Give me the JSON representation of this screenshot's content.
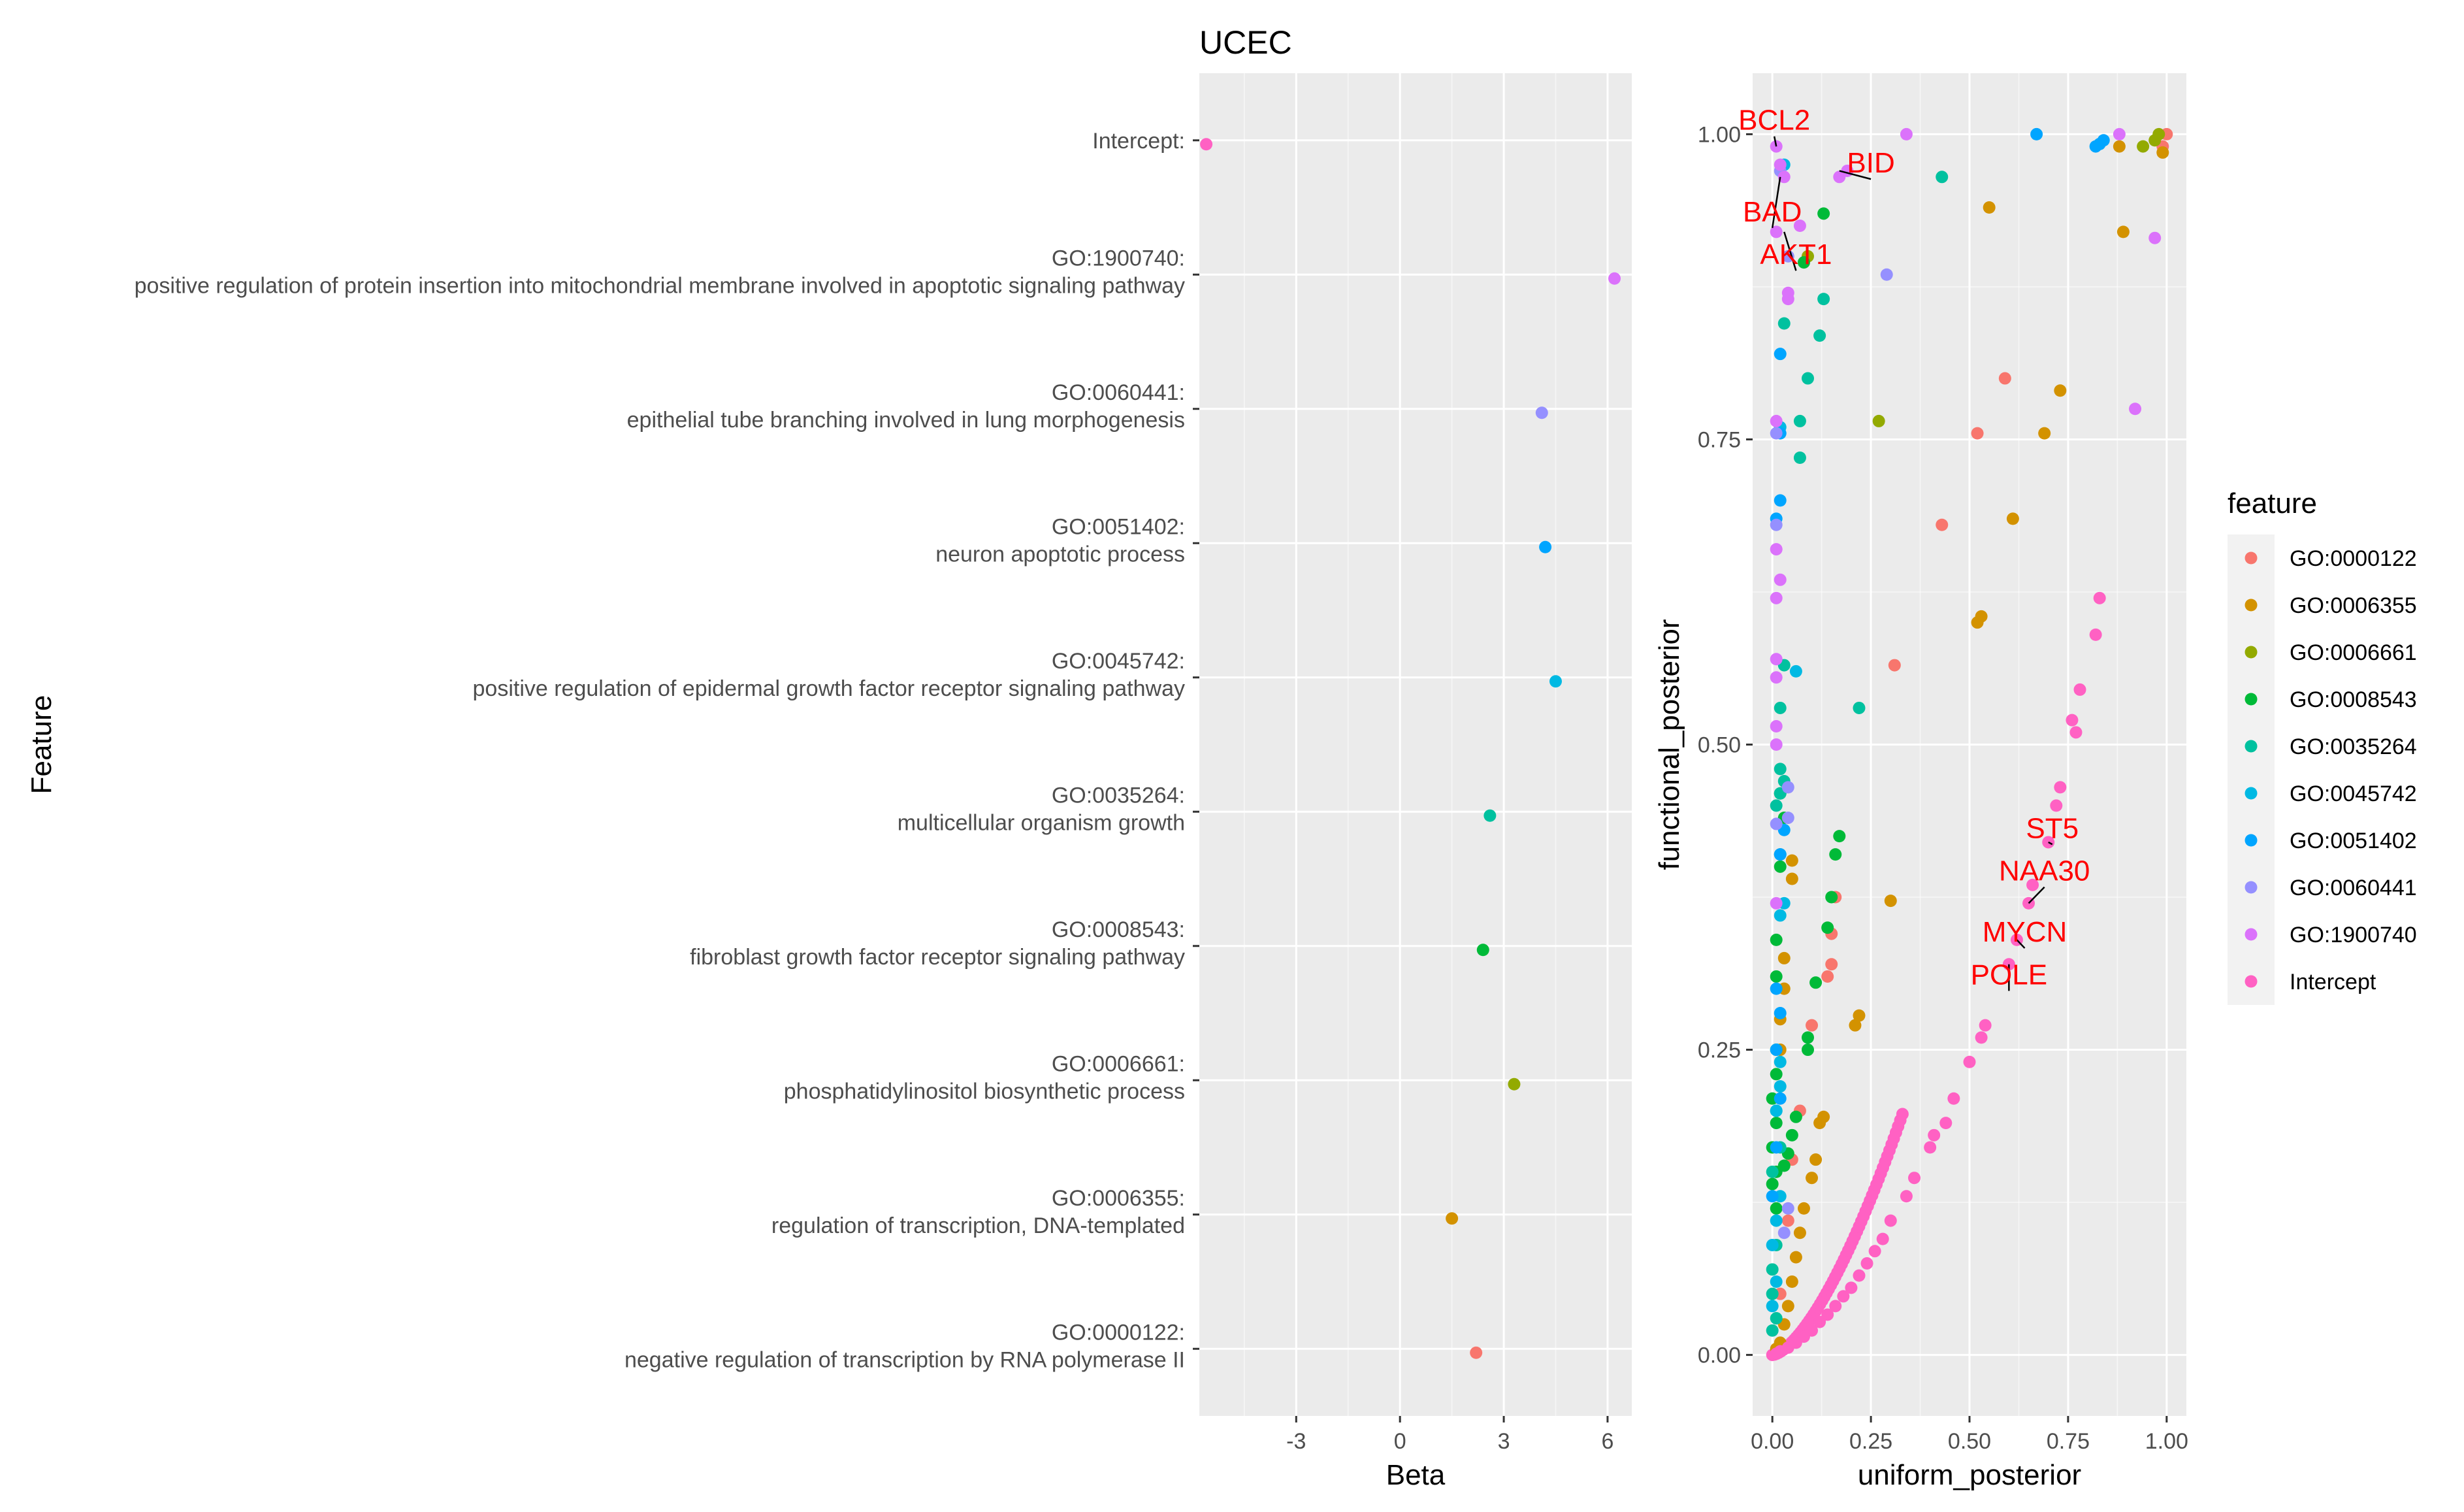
{
  "chart_data": [
    {
      "type": "scatter",
      "title": "UCEC",
      "xlabel": "Beta",
      "ylabel": "Feature",
      "xlim": [
        -5.8,
        6.7
      ],
      "xticks": [
        -3,
        0,
        3,
        6
      ],
      "xtick_labels": [
        "-3",
        "0",
        "3",
        "6"
      ],
      "grid": true,
      "categories": [
        {
          "id": "GO:0000122:",
          "desc": "negative regulation of transcription by RNA polymerase II",
          "beta": 2.2,
          "color": "#F8766D"
        },
        {
          "id": "GO:0006355:",
          "desc": "regulation of transcription, DNA-templated",
          "beta": 1.5,
          "color": "#D39200"
        },
        {
          "id": "GO:0006661:",
          "desc": "phosphatidylinositol biosynthetic process",
          "beta": 3.3,
          "color": "#93AA00"
        },
        {
          "id": "GO:0008543:",
          "desc": "fibroblast growth factor receptor signaling pathway",
          "beta": 2.4,
          "color": "#00BA38"
        },
        {
          "id": "GO:0035264:",
          "desc": "multicellular organism growth",
          "beta": 2.6,
          "color": "#00C19F"
        },
        {
          "id": "GO:0045742:",
          "desc": "positive regulation of epidermal growth factor receptor signaling pathway",
          "beta": 4.5,
          "color": "#00B9E3"
        },
        {
          "id": "GO:0051402:",
          "desc": "neuron apoptotic process",
          "beta": 4.2,
          "color": "#00A5FF"
        },
        {
          "id": "GO:0060441:",
          "desc": "epithelial tube branching involved in lung morphogenesis",
          "beta": 4.1,
          "color": "#9590FF"
        },
        {
          "id": "GO:1900740:",
          "desc": "positive regulation of protein insertion into mitochondrial membrane involved in apoptotic signaling pathway",
          "beta": 6.2,
          "color": "#DB72FB"
        },
        {
          "id": "Intercept:",
          "desc": "",
          "beta": -5.6,
          "color": "#FF61C3"
        }
      ]
    },
    {
      "type": "scatter",
      "title": "",
      "xlabel": "uniform_posterior",
      "ylabel": "functional_posterior",
      "xlim": [
        -0.05,
        1.05
      ],
      "ylim": [
        -0.05,
        1.05
      ],
      "xticks": [
        0,
        0.25,
        0.5,
        0.75,
        1
      ],
      "xtick_labels": [
        "0.00",
        "0.25",
        "0.50",
        "0.75",
        "1.00"
      ],
      "yticks": [
        0,
        0.25,
        0.5,
        0.75,
        1
      ],
      "ytick_labels": [
        "0.00",
        "0.25",
        "0.50",
        "0.75",
        "1.00"
      ],
      "grid": true,
      "legend": {
        "title": "feature",
        "position": "right",
        "items": [
          {
            "label": "GO:0000122",
            "color": "#F8766D"
          },
          {
            "label": "GO:0006355",
            "color": "#D39200"
          },
          {
            "label": "GO:0006661",
            "color": "#93AA00"
          },
          {
            "label": "GO:0008543",
            "color": "#00BA38"
          },
          {
            "label": "GO:0035264",
            "color": "#00C19F"
          },
          {
            "label": "GO:0045742",
            "color": "#00B9E3"
          },
          {
            "label": "GO:0051402",
            "color": "#00A5FF"
          },
          {
            "label": "GO:0060441",
            "color": "#9590FF"
          },
          {
            "label": "GO:1900740",
            "color": "#DB72FB"
          },
          {
            "label": "Intercept",
            "color": "#FF61C3"
          }
        ]
      },
      "series": [
        {
          "name": "GO:0000122",
          "points": [
            [
              0.16,
              0.375
            ],
            [
              0.15,
              0.345
            ],
            [
              0.14,
              0.31
            ],
            [
              0.15,
              0.32
            ],
            [
              0.31,
              0.565
            ],
            [
              0.43,
              0.68
            ],
            [
              0.52,
              0.755
            ],
            [
              0.59,
              0.8
            ],
            [
              0.99,
              0.99
            ],
            [
              1.0,
              1.0
            ],
            [
              0.1,
              0.27
            ],
            [
              0.07,
              0.2
            ],
            [
              0.05,
              0.16
            ],
            [
              0.04,
              0.11
            ],
            [
              0.02,
              0.05
            ]
          ]
        },
        {
          "name": "GO:0006355",
          "points": [
            [
              0.3,
              0.372
            ],
            [
              0.22,
              0.278
            ],
            [
              0.21,
              0.27
            ],
            [
              0.05,
              0.405
            ],
            [
              0.05,
              0.39
            ],
            [
              0.03,
              0.325
            ],
            [
              0.03,
              0.3
            ],
            [
              0.02,
              0.275
            ],
            [
              0.02,
              0.25
            ],
            [
              0.53,
              0.605
            ],
            [
              0.52,
              0.6
            ],
            [
              0.55,
              0.94
            ],
            [
              0.61,
              0.685
            ],
            [
              0.69,
              0.755
            ],
            [
              0.73,
              0.79
            ],
            [
              0.89,
              0.92
            ],
            [
              0.88,
              0.99
            ],
            [
              0.99,
              0.985
            ],
            [
              0.13,
              0.195
            ],
            [
              0.12,
              0.19
            ],
            [
              0.11,
              0.16
            ],
            [
              0.1,
              0.145
            ],
            [
              0.08,
              0.12
            ],
            [
              0.07,
              0.1
            ],
            [
              0.06,
              0.08
            ],
            [
              0.05,
              0.06
            ],
            [
              0.04,
              0.04
            ],
            [
              0.03,
              0.025
            ],
            [
              0.02,
              0.01
            ],
            [
              0.01,
              0.005
            ]
          ]
        },
        {
          "name": "GO:0006661",
          "points": [
            [
              0.27,
              0.765
            ],
            [
              0.97,
              0.995
            ],
            [
              0.98,
              1.0
            ],
            [
              0.94,
              0.99
            ],
            [
              0.09,
              0.9
            ]
          ]
        },
        {
          "name": "GO:0008543",
          "points": [
            [
              0.17,
              0.425
            ],
            [
              0.16,
              0.41
            ],
            [
              0.15,
              0.375
            ],
            [
              0.14,
              0.35
            ],
            [
              0.11,
              0.305
            ],
            [
              0.09,
              0.26
            ],
            [
              0.09,
              0.25
            ],
            [
              0.06,
              0.195
            ],
            [
              0.05,
              0.18
            ],
            [
              0.04,
              0.165
            ],
            [
              0.03,
              0.155
            ],
            [
              0.08,
              0.895
            ],
            [
              0.13,
              0.935
            ],
            [
              0.02,
              0.46
            ],
            [
              0.03,
              0.44
            ],
            [
              0.02,
              0.4
            ],
            [
              0.01,
              0.34
            ],
            [
              0.01,
              0.31
            ],
            [
              0.01,
              0.25
            ],
            [
              0.01,
              0.23
            ],
            [
              0.0,
              0.21
            ],
            [
              0.01,
              0.19
            ],
            [
              0.0,
              0.17
            ],
            [
              0.01,
              0.15
            ],
            [
              0.0,
              0.14
            ],
            [
              0.01,
              0.12
            ]
          ]
        },
        {
          "name": "GO:0035264",
          "points": [
            [
              0.43,
              0.965
            ],
            [
              0.13,
              0.865
            ],
            [
              0.09,
              0.8
            ],
            [
              0.12,
              0.835
            ],
            [
              0.03,
              0.845
            ],
            [
              0.07,
              0.765
            ],
            [
              0.07,
              0.735
            ],
            [
              0.22,
              0.53
            ],
            [
              0.03,
              0.565
            ],
            [
              0.02,
              0.53
            ],
            [
              0.02,
              0.48
            ],
            [
              0.02,
              0.46
            ],
            [
              0.03,
              0.47
            ],
            [
              0.01,
              0.45
            ],
            [
              0.02,
              0.41
            ],
            [
              0.01,
              0.2
            ],
            [
              0.02,
              0.17
            ],
            [
              0.0,
              0.15
            ],
            [
              0.01,
              0.09
            ],
            [
              0.0,
              0.07
            ],
            [
              0.0,
              0.05
            ],
            [
              0.01,
              0.03
            ],
            [
              0.0,
              0.02
            ]
          ]
        },
        {
          "name": "GO:0045742",
          "points": [
            [
              0.06,
              0.56
            ],
            [
              0.03,
              0.37
            ],
            [
              0.02,
              0.36
            ],
            [
              0.02,
              0.24
            ],
            [
              0.02,
              0.22
            ],
            [
              0.01,
              0.2
            ],
            [
              0.02,
              0.13
            ],
            [
              0.01,
              0.11
            ],
            [
              0.0,
              0.09
            ],
            [
              0.01,
              0.06
            ],
            [
              0.0,
              0.04
            ],
            [
              0.03,
              0.975
            ],
            [
              0.02,
              0.76
            ]
          ]
        },
        {
          "name": "GO:0051402",
          "points": [
            [
              0.67,
              1.0
            ],
            [
              0.82,
              0.99
            ],
            [
              0.83,
              0.992
            ],
            [
              0.84,
              0.995
            ],
            [
              0.02,
              0.82
            ],
            [
              0.02,
              0.7
            ],
            [
              0.01,
              0.685
            ],
            [
              0.02,
              0.755
            ],
            [
              0.03,
              0.43
            ],
            [
              0.02,
              0.41
            ],
            [
              0.01,
              0.3
            ],
            [
              0.02,
              0.28
            ],
            [
              0.01,
              0.25
            ],
            [
              0.02,
              0.21
            ],
            [
              0.01,
              0.17
            ],
            [
              0.0,
              0.13
            ]
          ]
        },
        {
          "name": "GO:0060441",
          "points": [
            [
              0.29,
              0.885
            ],
            [
              0.04,
              0.9
            ],
            [
              0.04,
              0.465
            ],
            [
              0.01,
              0.435
            ],
            [
              0.02,
              0.97
            ],
            [
              0.01,
              0.755
            ],
            [
              0.04,
              0.44
            ],
            [
              0.01,
              0.68
            ],
            [
              0.04,
              0.12
            ],
            [
              0.03,
              0.1
            ]
          ]
        },
        {
          "name": "GO:1900740",
          "points": [
            [
              0.01,
              0.99
            ],
            [
              0.02,
              0.975
            ],
            [
              0.03,
              0.965
            ],
            [
              0.07,
              0.925
            ],
            [
              0.01,
              0.92
            ],
            [
              0.34,
              1.0
            ],
            [
              0.88,
              1.0
            ],
            [
              0.97,
              0.915
            ],
            [
              0.92,
              0.775
            ],
            [
              0.17,
              0.965
            ],
            [
              0.19,
              0.97
            ],
            [
              0.04,
              0.87
            ],
            [
              0.04,
              0.865
            ],
            [
              0.01,
              0.765
            ],
            [
              0.01,
              0.66
            ],
            [
              0.02,
              0.635
            ],
            [
              0.01,
              0.62
            ],
            [
              0.01,
              0.57
            ],
            [
              0.01,
              0.555
            ],
            [
              0.01,
              0.515
            ],
            [
              0.01,
              0.5
            ],
            [
              0.01,
              0.37
            ]
          ]
        },
        {
          "name": "Intercept",
          "points": [
            [
              0.62,
              0.34
            ],
            [
              0.6,
              0.32
            ],
            [
              0.65,
              0.37
            ],
            [
              0.66,
              0.385
            ],
            [
              0.7,
              0.42
            ],
            [
              0.72,
              0.45
            ],
            [
              0.73,
              0.465
            ],
            [
              0.77,
              0.51
            ],
            [
              0.76,
              0.52
            ],
            [
              0.78,
              0.545
            ],
            [
              0.82,
              0.59
            ],
            [
              0.83,
              0.62
            ],
            [
              0.54,
              0.27
            ],
            [
              0.53,
              0.26
            ],
            [
              0.5,
              0.24
            ],
            [
              0.46,
              0.21
            ],
            [
              0.44,
              0.19
            ],
            [
              0.41,
              0.18
            ],
            [
              0.4,
              0.17
            ],
            [
              0.36,
              0.145
            ],
            [
              0.34,
              0.13
            ],
            [
              0.3,
              0.11
            ],
            [
              0.28,
              0.095
            ],
            [
              0.26,
              0.085
            ],
            [
              0.24,
              0.075
            ],
            [
              0.22,
              0.065
            ],
            [
              0.2,
              0.055
            ],
            [
              0.18,
              0.048
            ],
            [
              0.16,
              0.04
            ],
            [
              0.14,
              0.033
            ],
            [
              0.12,
              0.027
            ],
            [
              0.1,
              0.02
            ],
            [
              0.08,
              0.015
            ],
            [
              0.06,
              0.01
            ],
            [
              0.04,
              0.006
            ],
            [
              0.02,
              0.003
            ],
            [
              0.01,
              0.001
            ]
          ]
        }
      ],
      "curve_series": {
        "name": "Intercept",
        "x_max": 0.33,
        "coef": 1.1,
        "exp": 1.55,
        "samples": 60
      },
      "annotations": [
        {
          "label": "BCL2",
          "x": 0.01,
          "y": 0.99,
          "tx": 0.005,
          "ty": 1.01
        },
        {
          "label": "BID",
          "x": 0.17,
          "y": 0.97,
          "tx": 0.25,
          "ty": 0.975
        },
        {
          "label": "BAD",
          "x": 0.02,
          "y": 0.965,
          "tx": 0.0,
          "ty": 0.935
        },
        {
          "label": "AKT1",
          "x": 0.03,
          "y": 0.92,
          "tx": 0.06,
          "ty": 0.9
        },
        {
          "label": "ST5",
          "x": 0.7,
          "y": 0.42,
          "tx": 0.71,
          "ty": 0.43
        },
        {
          "label": "NAA30",
          "x": 0.65,
          "y": 0.37,
          "tx": 0.69,
          "ty": 0.395
        },
        {
          "label": "MYCN",
          "x": 0.62,
          "y": 0.34,
          "tx": 0.64,
          "ty": 0.345
        },
        {
          "label": "POLE",
          "x": 0.6,
          "y": 0.32,
          "tx": 0.6,
          "ty": 0.31
        }
      ]
    }
  ]
}
